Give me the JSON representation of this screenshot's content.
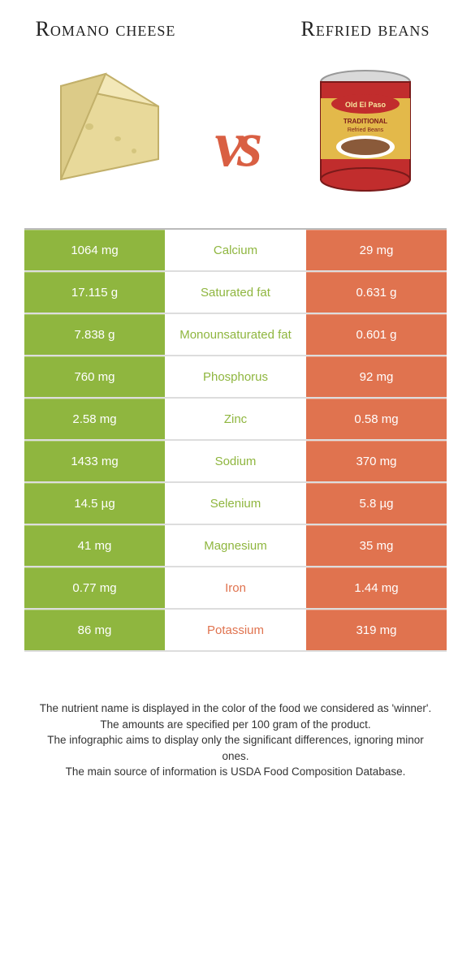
{
  "colors": {
    "green": "#8fb63f",
    "orange": "#e0734f",
    "vs": "#d95f43"
  },
  "food_left": {
    "title": "Romano cheese"
  },
  "food_right": {
    "title": "Refried beans"
  },
  "vs_text": "vs",
  "rows": [
    {
      "left": "1064 mg",
      "name": "Calcium",
      "right": "29 mg",
      "winner": "left"
    },
    {
      "left": "17.115 g",
      "name": "Saturated fat",
      "right": "0.631 g",
      "winner": "left"
    },
    {
      "left": "7.838 g",
      "name": "Monounsaturated fat",
      "right": "0.601 g",
      "winner": "left"
    },
    {
      "left": "760 mg",
      "name": "Phosphorus",
      "right": "92 mg",
      "winner": "left"
    },
    {
      "left": "2.58 mg",
      "name": "Zinc",
      "right": "0.58 mg",
      "winner": "left"
    },
    {
      "left": "1433 mg",
      "name": "Sodium",
      "right": "370 mg",
      "winner": "left"
    },
    {
      "left": "14.5 µg",
      "name": "Selenium",
      "right": "5.8 µg",
      "winner": "left"
    },
    {
      "left": "41 mg",
      "name": "Magnesium",
      "right": "35 mg",
      "winner": "left"
    },
    {
      "left": "0.77 mg",
      "name": "Iron",
      "right": "1.44 mg",
      "winner": "right"
    },
    {
      "left": "86 mg",
      "name": "Potassium",
      "right": "319 mg",
      "winner": "right"
    }
  ],
  "footnotes": [
    "The nutrient name is displayed in the color of the food we considered as 'winner'.",
    "The amounts are specified per 100 gram of the product.",
    "The infographic aims to display only the significant differences, ignoring minor ones.",
    "The main source of information is USDA Food Composition Database."
  ]
}
